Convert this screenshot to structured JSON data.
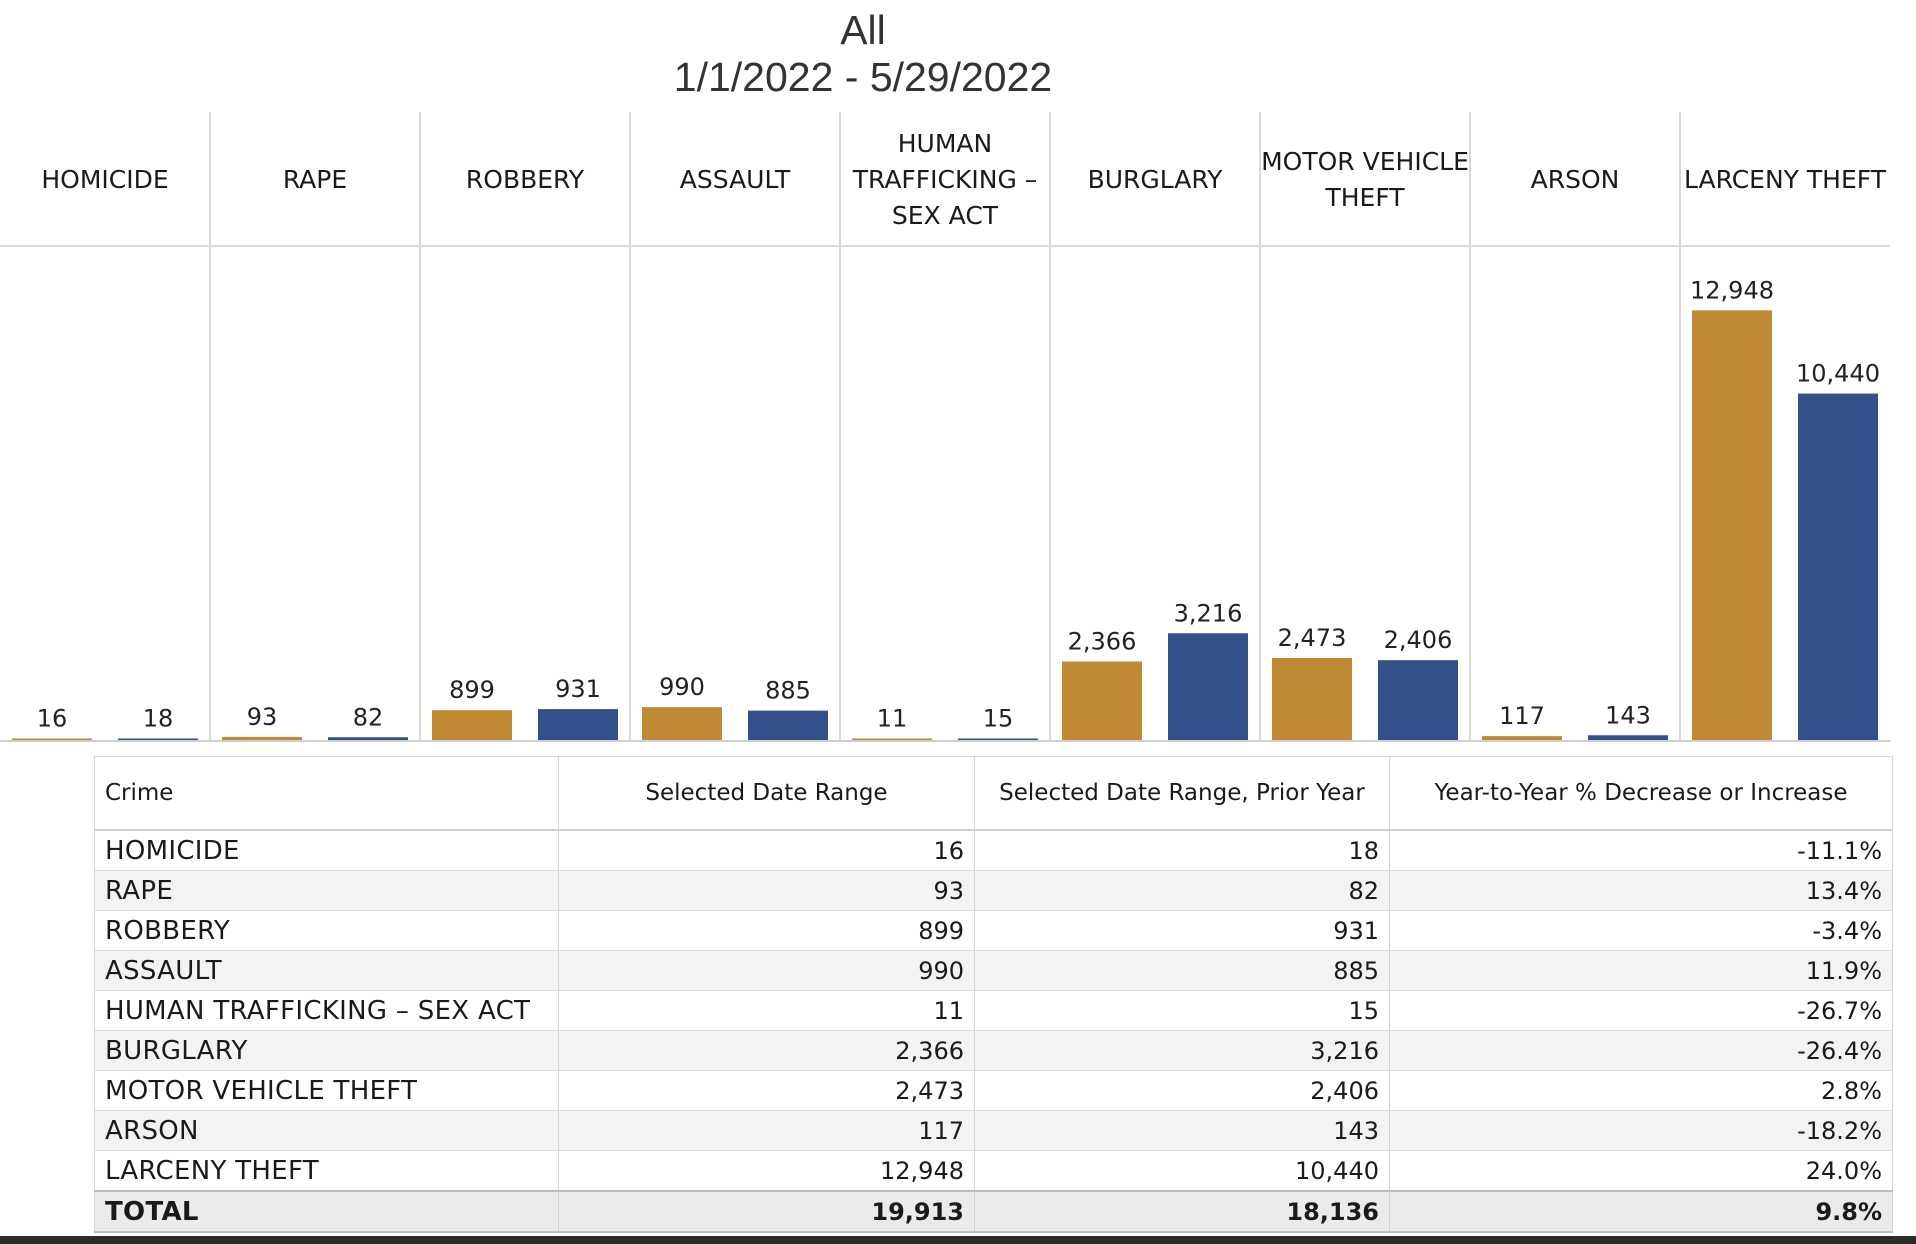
{
  "title": {
    "line1": "All",
    "line2": "1/1/2022 - 5/29/2022"
  },
  "colors": {
    "current": "#BF8A35",
    "prior": "#34508A",
    "grid": "#d9d9d9"
  },
  "chart_data": {
    "type": "bar",
    "title": "All 1/1/2022 - 5/29/2022",
    "categories": [
      "HOMICIDE",
      "RAPE",
      "ROBBERY",
      "ASSAULT",
      "HUMAN TRAFFICKING – SEX ACT",
      "BURGLARY",
      "MOTOR VEHICLE THEFT",
      "ARSON",
      "LARCENY THEFT"
    ],
    "header_lines": [
      [
        "HOMICIDE"
      ],
      [
        "RAPE"
      ],
      [
        "ROBBERY"
      ],
      [
        "ASSAULT"
      ],
      [
        "HUMAN",
        "TRAFFICKING –",
        "SEX ACT"
      ],
      [
        "BURGLARY"
      ],
      [
        "MOTOR VEHICLE",
        "THEFT"
      ],
      [
        "ARSON"
      ],
      [
        "LARCENY THEFT"
      ]
    ],
    "series": [
      {
        "values": [
          16,
          93,
          899,
          990,
          11,
          2366,
          2473,
          117,
          12948
        ],
        "labels": [
          "16",
          "93",
          "899",
          "990",
          "11",
          "2,366",
          "2,473",
          "117",
          "12,948"
        ]
      },
      {
        "values": [
          18,
          82,
          931,
          885,
          15,
          3216,
          2406,
          143,
          10440
        ],
        "labels": [
          "18",
          "82",
          "931",
          "885",
          "15",
          "3,216",
          "2,406",
          "143",
          "10,440"
        ]
      }
    ],
    "ylim": [
      0,
      13500
    ],
    "grid": false,
    "legend": "none"
  },
  "table": {
    "headers": [
      "Crime",
      "Selected Date Range",
      "Selected Date Range, Prior Year",
      "Year-to-Year % Decrease or Increase"
    ],
    "rows": [
      [
        "HOMICIDE",
        "16",
        "18",
        "-11.1%"
      ],
      [
        "RAPE",
        "93",
        "82",
        "13.4%"
      ],
      [
        "ROBBERY",
        "899",
        "931",
        "-3.4%"
      ],
      [
        "ASSAULT",
        "990",
        "885",
        "11.9%"
      ],
      [
        "HUMAN TRAFFICKING – SEX ACT",
        "11",
        "15",
        "-26.7%"
      ],
      [
        "BURGLARY",
        "2,366",
        "3,216",
        "-26.4%"
      ],
      [
        "MOTOR VEHICLE THEFT",
        "2,473",
        "2,406",
        "2.8%"
      ],
      [
        "ARSON",
        "117",
        "143",
        "-18.2%"
      ],
      [
        "LARCENY THEFT",
        "12,948",
        "10,440",
        "24.0%"
      ]
    ],
    "total": [
      "TOTAL",
      "19,913",
      "18,136",
      "9.8%"
    ]
  }
}
